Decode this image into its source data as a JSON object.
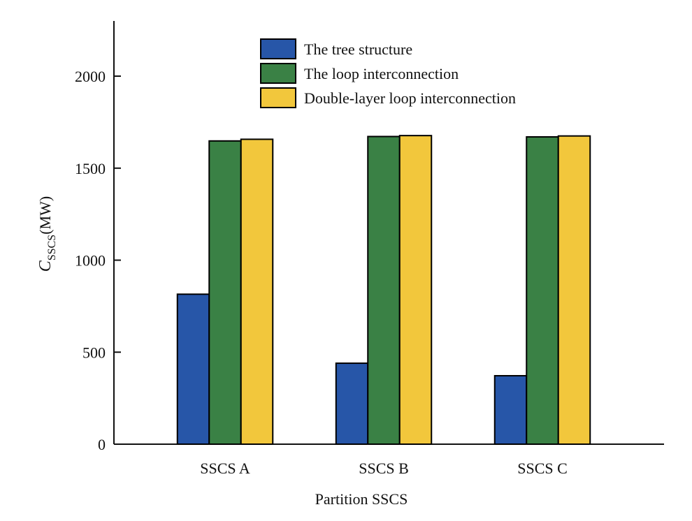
{
  "chart_data": {
    "type": "bar",
    "xlabel": "Partition SSCS",
    "ylabel": {
      "main": "C",
      "subscript": "SSCS",
      "unit": "(MW)"
    },
    "categories": [
      "SSCS A",
      "SSCS B",
      "SSCS C"
    ],
    "series": [
      {
        "name": "The tree structure",
        "color": "#2756a8",
        "values": [
          815,
          440,
          372
        ]
      },
      {
        "name": "The loop interconnection",
        "color": "#3a8145",
        "values": [
          1648,
          1672,
          1670
        ]
      },
      {
        "name": "Double-layer loop interconnection",
        "color": "#f2c73c",
        "values": [
          1657,
          1677,
          1675
        ]
      }
    ],
    "ylim": [
      0,
      2300
    ],
    "yticks": [
      0,
      500,
      1000,
      1500,
      2000
    ],
    "grid": false,
    "legend_position": "top"
  }
}
